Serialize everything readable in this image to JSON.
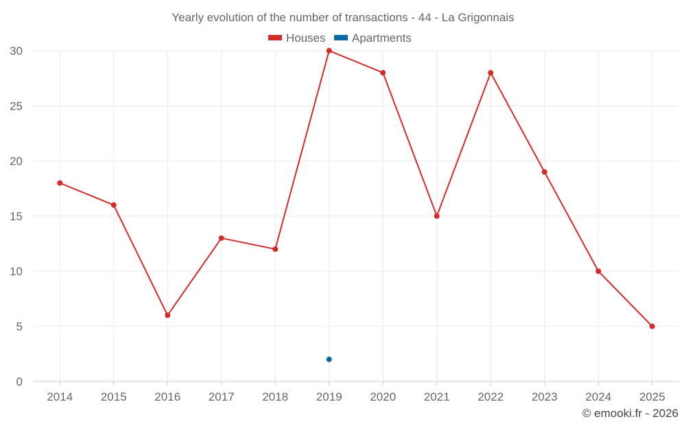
{
  "chart_data": {
    "type": "line",
    "title": "Yearly evolution of the number of transactions - 44 - La Grigonnais",
    "categories": [
      "2014",
      "2015",
      "2016",
      "2017",
      "2018",
      "2019",
      "2020",
      "2021",
      "2022",
      "2023",
      "2024",
      "2025"
    ],
    "series": [
      {
        "name": "Houses",
        "color": "#d42a2a",
        "values": [
          18,
          16,
          6,
          13,
          12,
          30,
          28,
          15,
          28,
          19,
          10,
          5
        ]
      },
      {
        "name": "Apartments",
        "color": "#0a6aa1",
        "values": [
          null,
          null,
          null,
          null,
          null,
          2,
          null,
          null,
          null,
          null,
          null,
          null
        ]
      }
    ],
    "ylim": [
      0,
      30
    ],
    "yticks": [
      0,
      5,
      10,
      15,
      20,
      25,
      30
    ],
    "grid": true,
    "legend_position": "top-center"
  },
  "credit": "© emooki.fr - 2026"
}
